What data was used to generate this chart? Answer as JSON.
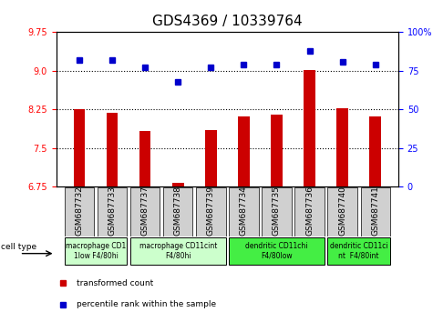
{
  "title": "GDS4369 / 10339764",
  "samples": [
    "GSM687732",
    "GSM687733",
    "GSM687737",
    "GSM687738",
    "GSM687739",
    "GSM687734",
    "GSM687735",
    "GSM687736",
    "GSM687740",
    "GSM687741"
  ],
  "transformed_count": [
    8.25,
    8.18,
    7.83,
    6.82,
    7.85,
    8.12,
    8.15,
    9.02,
    8.28,
    8.12
  ],
  "percentile_rank": [
    82,
    82,
    77,
    68,
    77,
    79,
    79,
    88,
    81,
    79
  ],
  "ylim_left": [
    6.75,
    9.75
  ],
  "ylim_right": [
    0,
    100
  ],
  "yticks_left": [
    6.75,
    7.5,
    8.25,
    9.0,
    9.75
  ],
  "yticks_right": [
    0,
    25,
    50,
    75,
    100
  ],
  "ytick_labels_right": [
    "0",
    "25",
    "50",
    "75",
    "100%"
  ],
  "hlines": [
    9.0,
    8.25,
    7.5
  ],
  "bar_color": "#cc0000",
  "dot_color": "#0000cc",
  "cell_type_groups": [
    {
      "label": "macrophage CD1\n1low F4/80hi",
      "start": 0,
      "end": 2,
      "color": "#ccffcc"
    },
    {
      "label": "macrophage CD11cint\nF4/80hi",
      "start": 2,
      "end": 5,
      "color": "#ccffcc"
    },
    {
      "label": "dendritic CD11chi\nF4/80low",
      "start": 5,
      "end": 8,
      "color": "#44ee44"
    },
    {
      "label": "dendritic CD11ci\nnt  F4/80int",
      "start": 8,
      "end": 10,
      "color": "#44ee44"
    }
  ],
  "legend_bar_label": "transformed count",
  "legend_dot_label": "percentile rank within the sample",
  "cell_type_label": "cell type",
  "bar_width": 0.5,
  "title_fontsize": 11,
  "tick_fontsize": 7,
  "label_fontsize": 7
}
